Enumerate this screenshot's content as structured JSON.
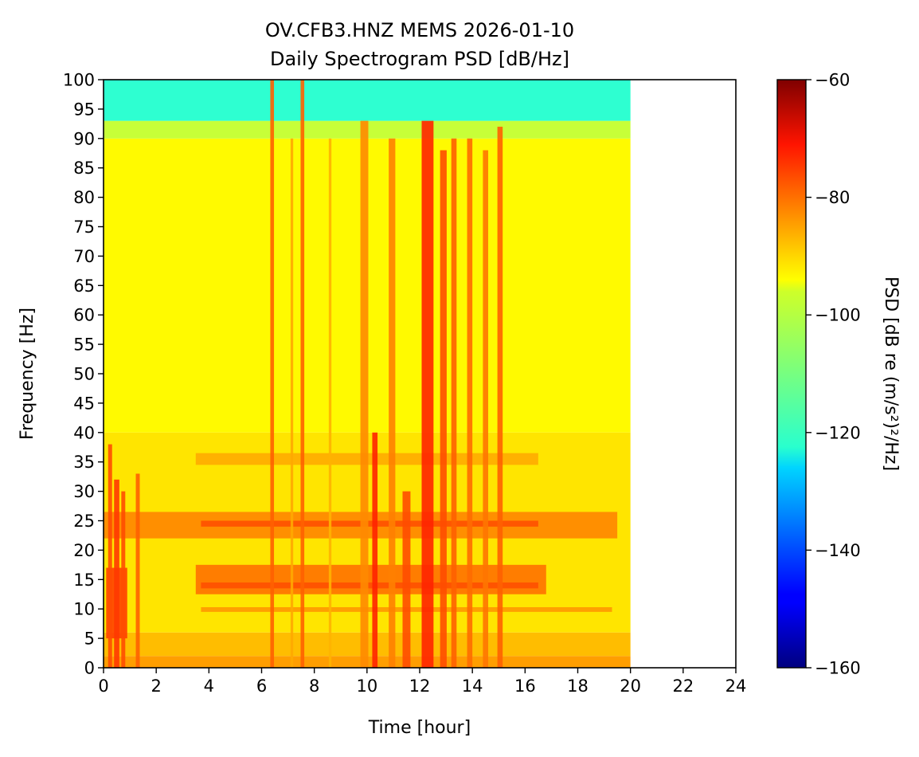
{
  "chart_data": {
    "type": "heatmap",
    "title_line1": "OV.CFB3.HNZ MEMS 2026-01-10",
    "title_line2": "Daily Spectrogram PSD [dB/Hz]",
    "xlabel": "Time [hour]",
    "ylabel": "Frequency [Hz]",
    "xlim": [
      0,
      24
    ],
    "ylim": [
      0,
      100
    ],
    "x_ticks": [
      0,
      2,
      4,
      6,
      8,
      10,
      12,
      14,
      16,
      18,
      20,
      22,
      24
    ],
    "y_ticks": [
      0,
      5,
      10,
      15,
      20,
      25,
      30,
      35,
      40,
      45,
      50,
      55,
      60,
      65,
      70,
      75,
      80,
      85,
      90,
      95,
      100
    ],
    "data_extent_hours": [
      0,
      20
    ],
    "colormap": "jet",
    "colorbar": {
      "label": "PSD [dB re (m/s²)²/Hz]",
      "range": [
        -160,
        -60
      ],
      "ticks": [
        -60,
        -80,
        -100,
        -120,
        -140,
        -160
      ],
      "tick_labels": [
        "−60",
        "−80",
        "−100",
        "−120",
        "−140",
        "−160"
      ]
    },
    "background_levels_db": [
      {
        "freq_range": [
          0,
          2
        ],
        "psd": -88
      },
      {
        "freq_range": [
          2,
          6
        ],
        "psd": -91
      },
      {
        "freq_range": [
          6,
          40
        ],
        "psd": -95
      },
      {
        "freq_range": [
          40,
          90
        ],
        "psd": -97
      },
      {
        "freq_range": [
          90,
          93
        ],
        "psd": -103
      },
      {
        "freq_range": [
          93,
          100
        ],
        "psd": -118
      }
    ],
    "horizontal_bands": [
      {
        "freq_range": [
          12.5,
          17.5
        ],
        "time_range": [
          3.5,
          16.8
        ],
        "psd": -83
      },
      {
        "freq_range": [
          22,
          26.5
        ],
        "time_range": [
          0,
          19.5
        ],
        "psd": -85
      },
      {
        "freq_range": [
          13.5,
          14.5
        ],
        "time_range": [
          3.7,
          16.5
        ],
        "psd": -80
      },
      {
        "freq_range": [
          24,
          25
        ],
        "time_range": [
          3.7,
          16.5
        ],
        "psd": -80
      },
      {
        "freq_range": [
          34.5,
          36.5
        ],
        "time_range": [
          3.5,
          16.5
        ],
        "psd": -89
      },
      {
        "freq_range": [
          9.5,
          10.3
        ],
        "time_range": [
          3.7,
          19.3
        ],
        "psd": -87
      },
      {
        "freq_range": [
          5,
          17
        ],
        "time_range": [
          0.1,
          0.9
        ],
        "psd": -78
      }
    ],
    "vertical_events": [
      {
        "time": 0.25,
        "width": 0.15,
        "fmax": 38,
        "psd": -80
      },
      {
        "time": 0.5,
        "width": 0.2,
        "fmax": 32,
        "psd": -78
      },
      {
        "time": 0.75,
        "width": 0.15,
        "fmax": 30,
        "psd": -80
      },
      {
        "time": 1.3,
        "width": 0.15,
        "fmax": 33,
        "psd": -82
      },
      {
        "time": 6.4,
        "width": 0.14,
        "fmax": 100,
        "psd": -82
      },
      {
        "time": 7.55,
        "width": 0.14,
        "fmax": 100,
        "psd": -82
      },
      {
        "time": 7.15,
        "width": 0.1,
        "fmax": 90,
        "psd": -89
      },
      {
        "time": 8.6,
        "width": 0.1,
        "fmax": 90,
        "psd": -90
      },
      {
        "time": 9.9,
        "width": 0.3,
        "fmax": 93,
        "psd": -86
      },
      {
        "time": 10.3,
        "width": 0.2,
        "fmax": 40,
        "psd": -76
      },
      {
        "time": 10.95,
        "width": 0.25,
        "fmax": 90,
        "psd": -85
      },
      {
        "time": 11.5,
        "width": 0.3,
        "fmax": 30,
        "psd": -80
      },
      {
        "time": 12.3,
        "width": 0.45,
        "fmax": 93,
        "psd": -76
      },
      {
        "time": 12.9,
        "width": 0.25,
        "fmax": 88,
        "psd": -80
      },
      {
        "time": 13.3,
        "width": 0.2,
        "fmax": 90,
        "psd": -82
      },
      {
        "time": 13.9,
        "width": 0.2,
        "fmax": 90,
        "psd": -83
      },
      {
        "time": 14.5,
        "width": 0.2,
        "fmax": 88,
        "psd": -84
      },
      {
        "time": 15.05,
        "width": 0.2,
        "fmax": 92,
        "psd": -82
      }
    ]
  }
}
